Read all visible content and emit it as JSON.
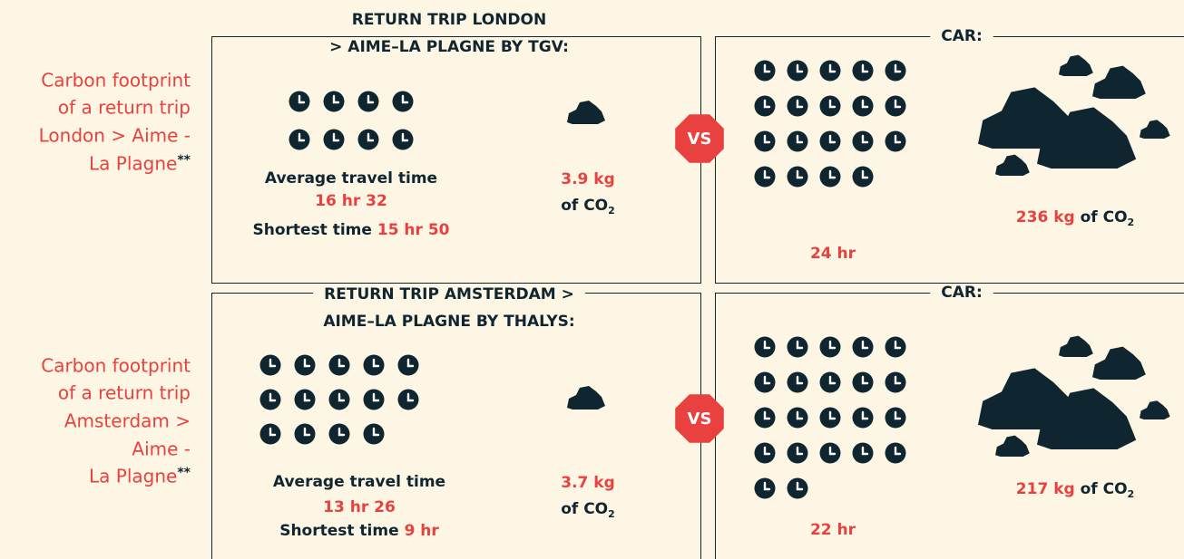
{
  "rows": [
    {
      "side_label": {
        "lines": [
          "Carbon footprint",
          "of a return trip",
          "London > Aime -",
          "La Plagne"
        ],
        "mark": "**"
      },
      "train": {
        "title_lines": [
          "RETURN TRIP LONDON",
          "> AIME–LA PLAGNE BY TGV:"
        ],
        "avg_label": "Average travel time",
        "avg_value": "16 hr 32",
        "short_label": "Shortest time",
        "short_value": "15 hr 50",
        "co2_value": "3.9 kg",
        "co2_unit": "of CO",
        "co2_sub": "2"
      },
      "vs": "VS",
      "car": {
        "title": "CAR:",
        "time": "24 hr",
        "co2_value": "236 kg",
        "co2_unit": "of CO",
        "co2_sub": "2"
      }
    },
    {
      "side_label": {
        "lines": [
          "Carbon footprint",
          "of a return trip",
          "Amsterdam >",
          "Aime -",
          "La Plagne"
        ],
        "mark": "**"
      },
      "train": {
        "title_lines": [
          "RETURN TRIP AMSTERDAM >",
          "AIME–LA PLAGNE BY THALYS:"
        ],
        "avg_label": "Average travel time",
        "avg_value": "13 hr 26",
        "short_label": "Shortest time",
        "short_value": "9 hr",
        "co2_value": "3.7 kg",
        "co2_unit": "of CO",
        "co2_sub": "2"
      },
      "vs": "VS",
      "car": {
        "title": "CAR:",
        "time": "22 hr",
        "co2_value": "217 kg",
        "co2_unit": "of CO",
        "co2_sub": "2"
      }
    }
  ]
}
